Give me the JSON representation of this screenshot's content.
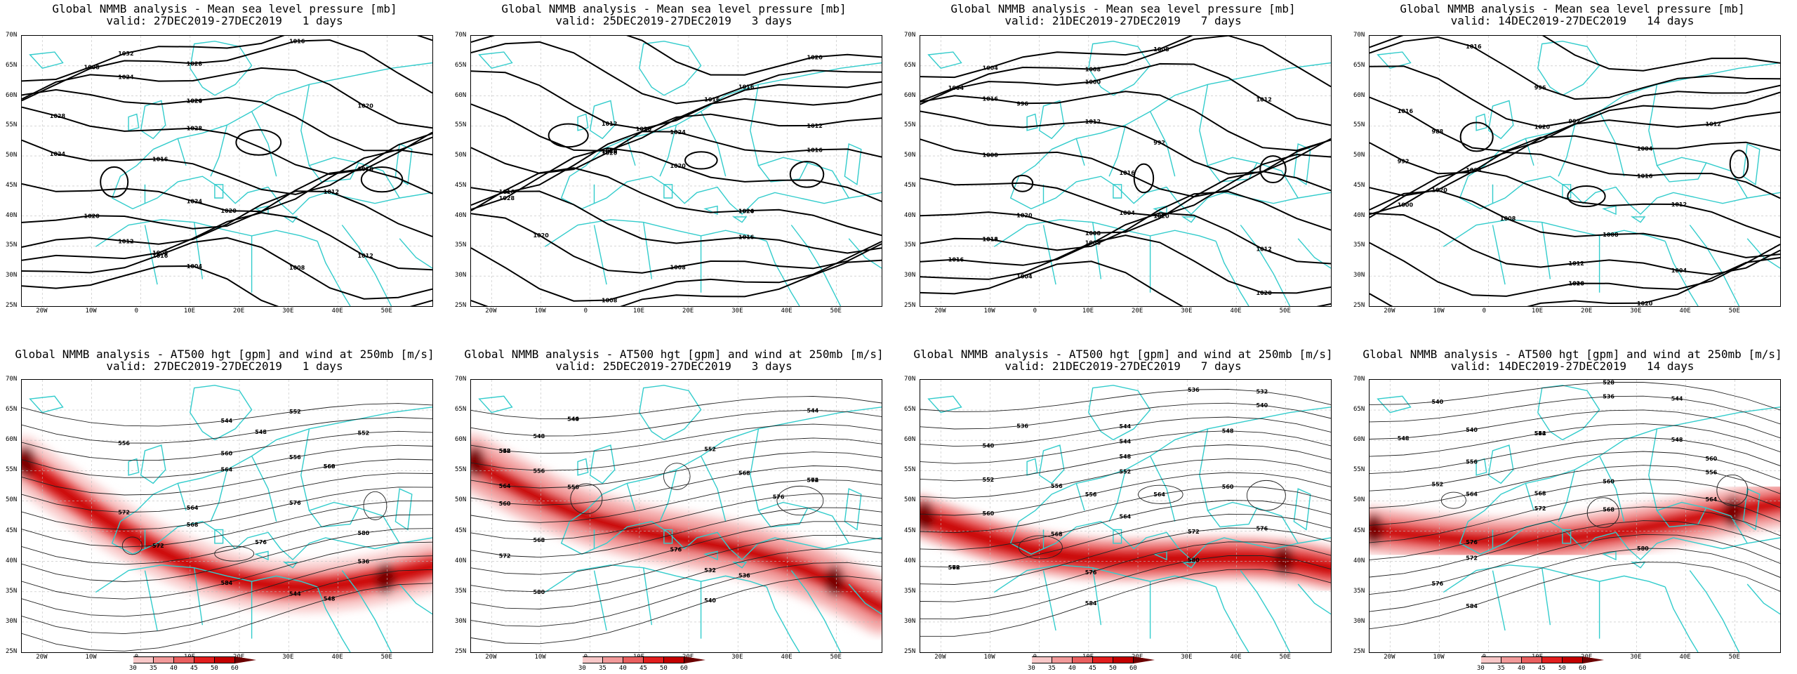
{
  "panels_top": [
    {
      "title": "Global NMMB analysis - Mean sea level pressure [mb]",
      "valid": "valid: 27DEC2019-27DEC2019   1 days",
      "labels": [
        "1032",
        "1028",
        "1024",
        "1020",
        "1028",
        "1024",
        "1020",
        "1016",
        "1012",
        "1012",
        "1008",
        "1004",
        "1008",
        "1016",
        "1020",
        "1024",
        "1028",
        "1016",
        "1024",
        "1020",
        "1012",
        "1008",
        "1016"
      ]
    },
    {
      "title": "Global NMMB analysis - Mean sea level pressure [mb]",
      "valid": "valid: 25DEC2019-27DEC2019   3 days",
      "labels": [
        "1020",
        "1016",
        "1012",
        "1020",
        "1020",
        "1024",
        "1028",
        "1020",
        "1016",
        "1008",
        "1008",
        "1012",
        "1012",
        "1016",
        "1020",
        "1024",
        "1012",
        "1016",
        "1020",
        "1024",
        "1016",
        "1020"
      ]
    },
    {
      "title": "Global NMMB analysis - Mean sea level pressure [mb]",
      "valid": "valid: 21DEC2019-27DEC2019   7 days",
      "labels": [
        "1008",
        "1004",
        "1000",
        "996",
        "992",
        "1000",
        "1004",
        "1008",
        "1012",
        "1016",
        "1020",
        "1024",
        "1004",
        "1008",
        "1012",
        "1016",
        "1012",
        "1016",
        "1020",
        "1020",
        "1016",
        "1012",
        "1008",
        "1004"
      ]
    },
    {
      "title": "Global NMMB analysis - Mean sea level pressure [mb]",
      "valid": "valid: 14DEC2019-27DEC2019   14 days",
      "labels": [
        "1000",
        "996",
        "992",
        "988",
        "992",
        "1004",
        "1000",
        "1004",
        "1008",
        "1012",
        "1016",
        "1020",
        "1012",
        "1016",
        "1020",
        "1016",
        "1012",
        "1020",
        "1016",
        "1012",
        "1008",
        "1004",
        "1020"
      ]
    }
  ],
  "panels_bottom": [
    {
      "title": "Global NMMB analysis - AT500 hgt [gpm] and wind at 250mb [m/s]",
      "valid": "valid: 27DEC2019-27DEC2019   1 days",
      "labels": [
        "544",
        "548",
        "552",
        "556",
        "560",
        "564",
        "568",
        "572",
        "576",
        "580",
        "584",
        "536",
        "544",
        "548",
        "552",
        "556",
        "560",
        "564",
        "568",
        "572",
        "576"
      ]
    },
    {
      "title": "Global NMMB analysis - AT500 hgt [gpm] and wind at 250mb [m/s]",
      "valid": "valid: 25DEC2019-27DEC2019   3 days",
      "labels": [
        "540",
        "544",
        "548",
        "552",
        "556",
        "560",
        "564",
        "568",
        "572",
        "576",
        "580",
        "532",
        "536",
        "540",
        "544",
        "548",
        "552",
        "556",
        "564",
        "568",
        "572",
        "576"
      ]
    },
    {
      "title": "Global NMMB analysis - AT500 hgt [gpm] and wind at 250mb [m/s]",
      "valid": "valid: 21DEC2019-27DEC2019   7 days",
      "labels": [
        "532",
        "536",
        "540",
        "544",
        "548",
        "552",
        "556",
        "560",
        "564",
        "568",
        "572",
        "576",
        "580",
        "584",
        "536",
        "540",
        "544",
        "548",
        "552",
        "556",
        "560",
        "564",
        "568",
        "572",
        "576"
      ]
    },
    {
      "title": "Global NMMB analysis - AT500 hgt [gpm] and wind at 250mb [m/s]",
      "valid": "valid: 14DEC2019-27DEC2019   14 days",
      "labels": [
        "528",
        "536",
        "540",
        "544",
        "548",
        "552",
        "556",
        "560",
        "564",
        "568",
        "572",
        "576",
        "580",
        "584",
        "540",
        "544",
        "548",
        "552",
        "556",
        "560",
        "564",
        "568",
        "572",
        "576"
      ]
    }
  ],
  "lat_labels": [
    "70N",
    "65N",
    "60N",
    "55N",
    "50N",
    "45N",
    "40N",
    "35N",
    "30N",
    "25N"
  ],
  "lon_labels": [
    "20W",
    "10W",
    "0",
    "10E",
    "20E",
    "30E",
    "40E",
    "50E"
  ],
  "colorbar_labels": [
    "30",
    "35",
    "40",
    "45",
    "50",
    "60"
  ],
  "colors": {
    "coast": "#33cccc",
    "wind_levels": [
      "#ffffff",
      "#f8c8c8",
      "#f29a9a",
      "#ea5f5f",
      "#e21e1e",
      "#c30000",
      "#6b0000"
    ]
  }
}
